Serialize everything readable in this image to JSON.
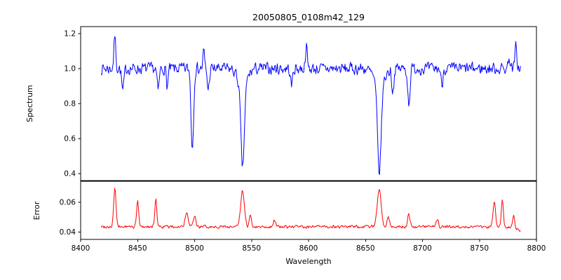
{
  "chart_data": {
    "type": "line",
    "title": "20050805_0108m42_129",
    "xlabel": "Wavelength",
    "xlim": [
      8400,
      8800
    ],
    "xticks": [
      8400,
      8450,
      8500,
      8550,
      8600,
      8650,
      8700,
      8750,
      8800
    ],
    "xtick_labels": [
      "8400",
      "8450",
      "8500",
      "8550",
      "8600",
      "8650",
      "8700",
      "8750",
      "8800"
    ],
    "x_start": 8418,
    "x_end": 8786,
    "grid": false,
    "legend": "none",
    "panels": [
      {
        "name": "spectrum",
        "ylabel": "Spectrum",
        "color": "#0000ff",
        "ylim": [
          0.36,
          1.24
        ],
        "yticks": [
          0.4,
          0.6,
          0.8,
          1.0,
          1.2
        ],
        "ytick_labels": [
          "0.4",
          "0.6",
          "0.8",
          "1.0",
          "1.2"
        ],
        "baseline": 1.0,
        "noise_amplitude": 0.04,
        "noise_seed": 7,
        "n_points": 620,
        "absorption_lines": [
          {
            "center": 8498.0,
            "depth": 0.46,
            "width": 1.1
          },
          {
            "center": 8542.1,
            "depth": 0.47,
            "width": 1.5
          },
          {
            "center": 8542.1,
            "depth": 0.1,
            "width": 4.0
          },
          {
            "center": 8662.1,
            "depth": 0.5,
            "width": 1.6
          },
          {
            "center": 8662.1,
            "depth": 0.09,
            "width": 4.5
          },
          {
            "center": 8437.0,
            "depth": 0.13,
            "width": 1.0
          },
          {
            "center": 8468.0,
            "depth": 0.13,
            "width": 0.9
          },
          {
            "center": 8476.0,
            "depth": 0.1,
            "width": 0.8
          },
          {
            "center": 8512.0,
            "depth": 0.12,
            "width": 0.9
          },
          {
            "center": 8585.0,
            "depth": 0.1,
            "width": 0.9
          },
          {
            "center": 8674.0,
            "depth": 0.13,
            "width": 0.9
          },
          {
            "center": 8688.0,
            "depth": 0.2,
            "width": 1.0
          },
          {
            "center": 8717.0,
            "depth": 0.1,
            "width": 0.8
          }
        ],
        "emission_spikes": [
          {
            "center": 8430.0,
            "height": 0.19,
            "width": 0.8
          },
          {
            "center": 8508.0,
            "height": 0.1,
            "width": 0.7
          },
          {
            "center": 8598.0,
            "height": 0.13,
            "width": 0.8
          },
          {
            "center": 8776.0,
            "height": 0.08,
            "width": 0.7
          },
          {
            "center": 8782.0,
            "height": 0.13,
            "width": 0.8
          }
        ]
      },
      {
        "name": "error",
        "ylabel": "Error",
        "color": "#ff0000",
        "ylim": [
          0.035,
          0.074
        ],
        "yticks": [
          0.04,
          0.06
        ],
        "ytick_labels": [
          "0.04",
          "0.06"
        ],
        "baseline": 0.0435,
        "noise_amplitude": 0.0012,
        "noise_seed": 99,
        "n_points": 620,
        "absorption_lines": [
          {
            "center": 8786.0,
            "depth": 0.003,
            "width": 2.5
          }
        ],
        "emission_spikes": [
          {
            "center": 8430.0,
            "height": 0.026,
            "width": 1.0
          },
          {
            "center": 8450.0,
            "height": 0.017,
            "width": 0.9
          },
          {
            "center": 8466.0,
            "height": 0.018,
            "width": 0.9
          },
          {
            "center": 8493.0,
            "height": 0.009,
            "width": 1.3
          },
          {
            "center": 8500.0,
            "height": 0.0075,
            "width": 1.0
          },
          {
            "center": 8542.0,
            "height": 0.024,
            "width": 1.6
          },
          {
            "center": 8549.0,
            "height": 0.008,
            "width": 0.9
          },
          {
            "center": 8570.0,
            "height": 0.0045,
            "width": 1.0
          },
          {
            "center": 8662.0,
            "height": 0.026,
            "width": 1.7
          },
          {
            "center": 8670.0,
            "height": 0.007,
            "width": 1.0
          },
          {
            "center": 8688.0,
            "height": 0.009,
            "width": 1.0
          },
          {
            "center": 8713.0,
            "height": 0.005,
            "width": 0.9
          },
          {
            "center": 8763.0,
            "height": 0.016,
            "width": 1.1
          },
          {
            "center": 8770.0,
            "height": 0.018,
            "width": 0.9
          },
          {
            "center": 8780.0,
            "height": 0.009,
            "width": 0.8
          }
        ]
      }
    ]
  }
}
